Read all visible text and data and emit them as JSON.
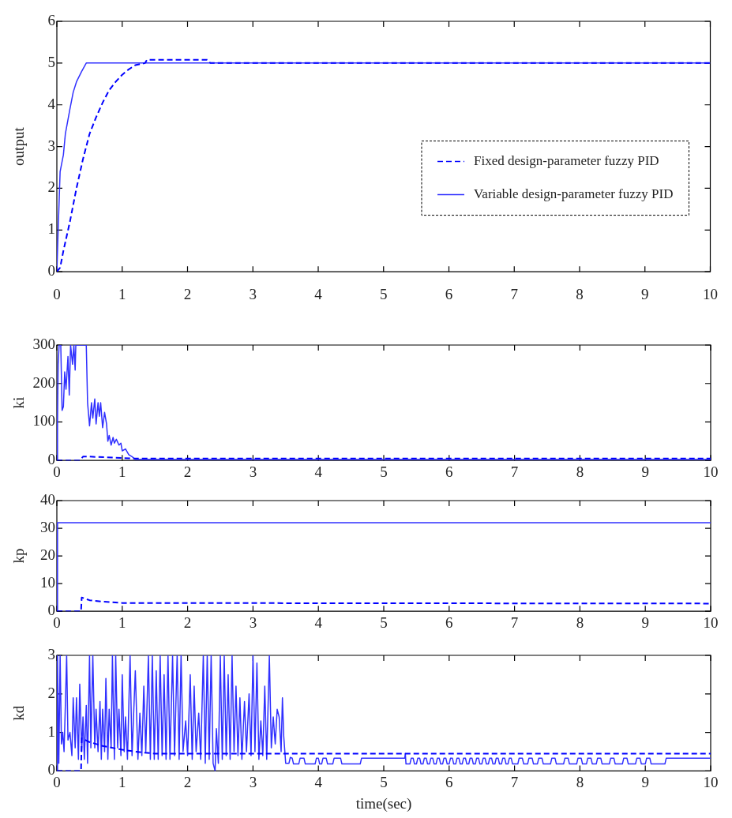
{
  "chart_data": [
    {
      "type": "line",
      "ylabel": "output",
      "xlim": [
        0,
        10
      ],
      "xticks": [
        0,
        1,
        2,
        3,
        4,
        5,
        6,
        7,
        8,
        9,
        10
      ],
      "ylim": [
        0,
        6
      ],
      "yticks": [
        0,
        1,
        2,
        3,
        4,
        5,
        6
      ],
      "grid": false,
      "legend": "right",
      "series": [
        {
          "name": "Fixed design-parameter fuzzy PID",
          "color": "#0000ff",
          "line_style": "dashed",
          "x": [
            0,
            0.05,
            0.1,
            0.2,
            0.3,
            0.4,
            0.5,
            0.6,
            0.7,
            0.8,
            0.9,
            1.0,
            1.1,
            1.2,
            1.35,
            1.38,
            2.3,
            2.35,
            10
          ],
          "values": [
            0,
            0.1,
            0.5,
            1.2,
            2,
            2.7,
            3.3,
            3.7,
            4.05,
            4.35,
            4.55,
            4.72,
            4.85,
            4.95,
            5,
            5.08,
            5.08,
            5,
            5
          ]
        },
        {
          "name": "Variable design-parameter fuzzy PID",
          "color": "#3030ff",
          "line_style": "solid",
          "x": [
            0,
            0.02,
            0.05,
            0.1,
            0.13,
            0.2,
            0.25,
            0.3,
            0.38,
            0.45,
            10
          ],
          "values": [
            0,
            1,
            2.4,
            2.8,
            3.3,
            3.9,
            4.3,
            4.55,
            4.8,
            5,
            5
          ]
        }
      ]
    },
    {
      "type": "line",
      "ylabel": "ki",
      "xlim": [
        0,
        10
      ],
      "xticks": [
        0,
        1,
        2,
        3,
        4,
        5,
        6,
        7,
        8,
        9,
        10
      ],
      "ylim": [
        0,
        300
      ],
      "yticks": [
        0,
        100,
        200,
        300
      ],
      "grid": false,
      "legend": false,
      "series": [
        {
          "color": "#0000ff",
          "line_style": "dashed",
          "x": [
            0,
            0.35,
            0.4,
            0.5,
            1.2,
            10
          ],
          "values": [
            0,
            0,
            10,
            10,
            5,
            5
          ]
        },
        {
          "color": "#3030ff",
          "line_style": "solid",
          "x": [
            0,
            0.01,
            0.02,
            0.035,
            0.06,
            0.08,
            0.1,
            0.12,
            0.14,
            0.17,
            0.19,
            0.21,
            0.24,
            0.26,
            0.28,
            0.29,
            0.45,
            0.47,
            0.5,
            0.53,
            0.55,
            0.58,
            0.6,
            0.63,
            0.65,
            0.67,
            0.7,
            0.73,
            0.76,
            0.78,
            0.8,
            0.83,
            0.86,
            0.88,
            0.91,
            0.95,
            0.98,
            1.0,
            1.05,
            1.1,
            1.15,
            1.2,
            10
          ],
          "values": [
            0,
            100,
            250,
            300,
            300,
            130,
            140,
            230,
            185,
            270,
            170,
            300,
            250,
            300,
            235,
            300,
            300,
            150,
            90,
            150,
            110,
            160,
            95,
            150,
            115,
            150,
            85,
            125,
            95,
            50,
            65,
            40,
            60,
            45,
            55,
            40,
            45,
            25,
            30,
            15,
            10,
            3,
            3
          ]
        }
      ]
    },
    {
      "type": "line",
      "ylabel": "kp",
      "xlim": [
        0,
        10
      ],
      "xticks": [
        0,
        1,
        2,
        3,
        4,
        5,
        6,
        7,
        8,
        9,
        10
      ],
      "ylim": [
        0,
        40
      ],
      "yticks": [
        0,
        10,
        20,
        30,
        40
      ],
      "grid": false,
      "legend": false,
      "series": [
        {
          "color": "#0000ff",
          "line_style": "dashed",
          "x": [
            0,
            0.37,
            0.38,
            0.5,
            0.7,
            1.0,
            10
          ],
          "values": [
            0,
            0,
            5,
            4,
            3.5,
            3,
            2.8
          ]
        },
        {
          "color": "#3030ff",
          "line_style": "solid",
          "x": [
            0,
            0.01,
            5,
            10
          ],
          "values": [
            0,
            32,
            32,
            32
          ]
        }
      ]
    },
    {
      "type": "line",
      "ylabel": "kd",
      "xlabel": "time(sec)",
      "xlim": [
        0,
        10
      ],
      "xticks": [
        0,
        1,
        2,
        3,
        4,
        5,
        6,
        7,
        8,
        9,
        10
      ],
      "ylim": [
        0,
        3
      ],
      "yticks": [
        0,
        1,
        2,
        3
      ],
      "grid": false,
      "legend": false,
      "series": [
        {
          "color": "#0000ff",
          "line_style": "dashed",
          "x": [
            0,
            0.37,
            0.38,
            0.5,
            0.7,
            1.0,
            1.3,
            1.5,
            10
          ],
          "values": [
            0,
            0,
            0.85,
            0.75,
            0.65,
            0.55,
            0.48,
            0.45,
            0.45
          ]
        },
        {
          "color": "#3030ff",
          "line_style": "solid",
          "x": [
            0,
            0.01,
            0.03,
            0.05,
            0.07,
            0.09,
            0.11,
            0.13,
            0.15,
            0.17,
            0.2,
            0.23,
            0.25,
            0.28,
            0.3,
            0.33,
            0.35,
            0.38,
            0.4,
            0.42,
            0.45,
            0.47,
            0.5,
            0.52,
            0.55,
            0.58,
            0.6,
            0.63,
            0.66,
            0.68,
            0.7,
            0.73,
            0.75,
            0.78,
            0.8,
            0.83,
            0.85,
            0.88,
            0.9,
            0.93,
            0.95,
            0.98,
            1.0,
            1.03,
            1.05,
            1.08,
            1.12,
            1.15,
            1.2,
            1.24,
            1.27,
            1.3,
            1.33,
            1.36,
            1.4,
            1.43,
            1.46,
            1.49,
            1.52,
            1.55,
            1.58,
            1.61,
            1.64,
            1.67,
            1.7,
            1.73,
            1.77,
            1.8,
            1.84,
            1.87,
            1.9,
            1.93,
            1.97,
            2.0,
            2.04,
            2.07,
            2.1,
            2.13,
            2.17,
            2.2,
            2.24,
            2.27,
            2.3,
            2.33,
            2.36,
            2.39,
            2.42,
            2.44,
            2.47,
            2.5,
            2.53,
            2.56,
            2.59,
            2.62,
            2.65,
            2.68,
            2.71,
            2.74,
            2.77,
            2.8,
            2.83,
            2.87,
            2.9,
            2.94,
            2.97,
            3.0,
            3.03,
            3.06,
            3.09,
            3.12,
            3.15,
            3.18,
            3.21,
            3.25,
            3.28,
            3.31,
            3.34,
            3.37,
            3.4,
            3.43,
            3.45,
            3.47,
            3.5,
            3.55,
            3.57,
            3.6,
            3.62,
            3.7,
            3.72,
            3.78,
            3.8,
            3.95,
            3.97,
            4.0,
            4.02,
            4.05,
            4.07,
            4.12,
            4.14,
            4.22,
            4.24,
            4.34,
            4.36,
            4.64,
            4.66,
            5.32,
            5.33,
            5.34,
            5.4,
            5.42,
            5.45,
            5.47,
            5.5,
            5.52,
            5.55,
            5.57,
            5.6,
            5.62,
            5.65,
            5.67,
            5.7,
            5.72,
            5.75,
            5.77,
            5.8,
            5.82,
            5.85,
            5.87,
            5.9,
            5.92,
            5.95,
            5.97,
            6.0,
            6.02,
            6.05,
            6.07,
            6.1,
            6.12,
            6.15,
            6.17,
            6.2,
            6.22,
            6.25,
            6.27,
            6.3,
            6.32,
            6.35,
            6.37,
            6.4,
            6.42,
            6.45,
            6.47,
            6.5,
            6.52,
            6.55,
            6.57,
            6.6,
            6.62,
            6.65,
            6.67,
            6.7,
            6.72,
            6.75,
            6.77,
            6.8,
            6.82,
            6.85,
            6.87,
            6.9,
            6.92,
            6.95,
            6.97,
            7.05,
            7.07,
            7.12,
            7.14,
            7.2,
            7.22,
            7.27,
            7.29,
            7.35,
            7.37,
            7.42,
            7.44,
            7.55,
            7.57,
            7.62,
            7.64,
            7.75,
            7.77,
            7.82,
            7.84,
            7.95,
            7.97,
            8.02,
            8.04,
            8.1,
            8.12,
            8.17,
            8.19,
            8.25,
            8.27,
            8.32,
            8.34,
            8.45,
            8.47,
            8.52,
            8.54,
            8.65,
            8.67,
            8.72,
            8.74,
            8.85,
            8.87,
            8.92,
            8.94,
            9.0,
            9.02,
            9.07,
            9.09,
            9.3,
            9.32,
            10
          ],
          "values": [
            0,
            3,
            0.2,
            3,
            0.7,
            1,
            0.5,
            1.7,
            3,
            0.8,
            1,
            0.4,
            1.9,
            0.6,
            1.9,
            0.3,
            2.25,
            0.5,
            1.4,
            0.3,
            1.7,
            0.2,
            3,
            0.6,
            3,
            0.6,
            1.6,
            0.5,
            1.8,
            0.3,
            1.6,
            0.5,
            2.4,
            0.3,
            1.6,
            0.6,
            3,
            0.3,
            3,
            0.6,
            1.6,
            0.4,
            2.5,
            0.5,
            1.4,
            0.3,
            3,
            0.4,
            2.6,
            0.3,
            1.5,
            0.4,
            2.2,
            0.5,
            3,
            0.3,
            3,
            0.3,
            2.6,
            0.3,
            3,
            0.4,
            2.5,
            0.3,
            3,
            0.3,
            3,
            0.4,
            3,
            0.3,
            3,
            0.5,
            1.3,
            0.4,
            2.5,
            0.3,
            2.2,
            0.5,
            1.5,
            0.3,
            3,
            0.2,
            3,
            0.3,
            3,
            0.2,
            0,
            1.1,
            0.2,
            3,
            0.3,
            3,
            0.4,
            2.5,
            0.3,
            3,
            0.5,
            2.2,
            0.4,
            1.9,
            0.3,
            1.8,
            0.5,
            2,
            0.4,
            3,
            0.5,
            2.8,
            0.3,
            1.3,
            0.4,
            2.2,
            0.3,
            3,
            0.6,
            1.4,
            0.7,
            1.6,
            1.4,
            0.5,
            1.9,
            0.9,
            0.2,
            0.2,
            0.35,
            0.33,
            0.18,
            0.18,
            0.33,
            0.33,
            0.18,
            0.18,
            0.33,
            0.33,
            0.18,
            0.18,
            0.33,
            0.33,
            0.18,
            0.18,
            0.33,
            0.33,
            0.18,
            0.18,
            0.33,
            0.33,
            0.45,
            0.18,
            0.18,
            0.33,
            0.33,
            0.18,
            0.18,
            0.33,
            0.33,
            0.18,
            0.18,
            0.33,
            0.33,
            0.18,
            0.18,
            0.33,
            0.33,
            0.18,
            0.18,
            0.33,
            0.33,
            0.18,
            0.18,
            0.33,
            0.33,
            0.18,
            0.18,
            0.33,
            0.33,
            0.18,
            0.18,
            0.33,
            0.33,
            0.18,
            0.18,
            0.33,
            0.33,
            0.18,
            0.18,
            0.33,
            0.33,
            0.18,
            0.18,
            0.33,
            0.33,
            0.18,
            0.18,
            0.33,
            0.33,
            0.18,
            0.18,
            0.33,
            0.33,
            0.18,
            0.18,
            0.33,
            0.33,
            0.18,
            0.18,
            0.33,
            0.33,
            0.18,
            0.18,
            0.33,
            0.33,
            0.18,
            0.18,
            0.33,
            0.33,
            0.18,
            0.18,
            0.33,
            0.33,
            0.18,
            0.18,
            0.33,
            0.33,
            0.18,
            0.18,
            0.33,
            0.33,
            0.18,
            0.18,
            0.33,
            0.33,
            0.18,
            0.18,
            0.33,
            0.33,
            0.18,
            0.18,
            0.33,
            0.33,
            0.18,
            0.18,
            0.33,
            0.33,
            0.18,
            0.18,
            0.33,
            0.33,
            0.18,
            0.18,
            0.33,
            0.33,
            0.18,
            0.18,
            0.33,
            0.33,
            0.18,
            0.18,
            0.33,
            0.33,
            0.18,
            0.18,
            0.33,
            0.33
          ]
        }
      ]
    }
  ]
}
